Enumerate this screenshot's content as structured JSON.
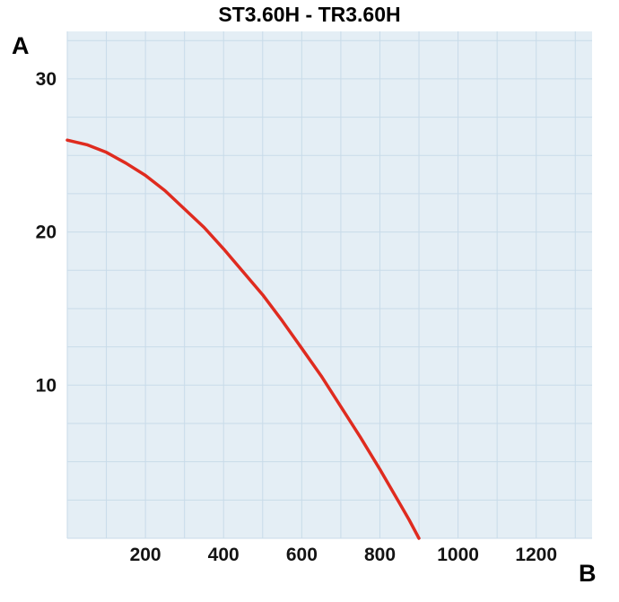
{
  "page": {
    "background": "#ffffff"
  },
  "chart_data": {
    "type": "line",
    "title": "ST3.60H - TR3.60H",
    "ylabel": "A",
    "xlabel": "B",
    "x_ticks": [
      200,
      400,
      600,
      800,
      1000,
      1200
    ],
    "y_ticks": [
      10,
      20,
      30
    ],
    "xlim": [
      0,
      1343
    ],
    "ylim": [
      0,
      33.1
    ],
    "grid": true,
    "grid_step_x": 100,
    "grid_step_y": 2.5,
    "legend": "none",
    "series": [
      {
        "name": "ST3.60H - TR3.60H curve",
        "color": "#df2b1f",
        "points": [
          [
            0,
            26.0
          ],
          [
            50,
            25.7
          ],
          [
            100,
            25.2
          ],
          [
            150,
            24.5
          ],
          [
            200,
            23.7
          ],
          [
            250,
            22.7
          ],
          [
            300,
            21.5
          ],
          [
            350,
            20.3
          ],
          [
            400,
            18.9
          ],
          [
            450,
            17.4
          ],
          [
            500,
            15.9
          ],
          [
            550,
            14.2
          ],
          [
            600,
            12.4
          ],
          [
            650,
            10.6
          ],
          [
            700,
            8.6
          ],
          [
            750,
            6.6
          ],
          [
            800,
            4.5
          ],
          [
            850,
            2.3
          ],
          [
            875,
            1.2
          ],
          [
            900,
            0.0
          ]
        ]
      }
    ],
    "colors": {
      "plot_bg": "#e4eef5",
      "grid": "#c8dbe9",
      "tick_text": "#141414",
      "title_text": "#000000"
    }
  }
}
